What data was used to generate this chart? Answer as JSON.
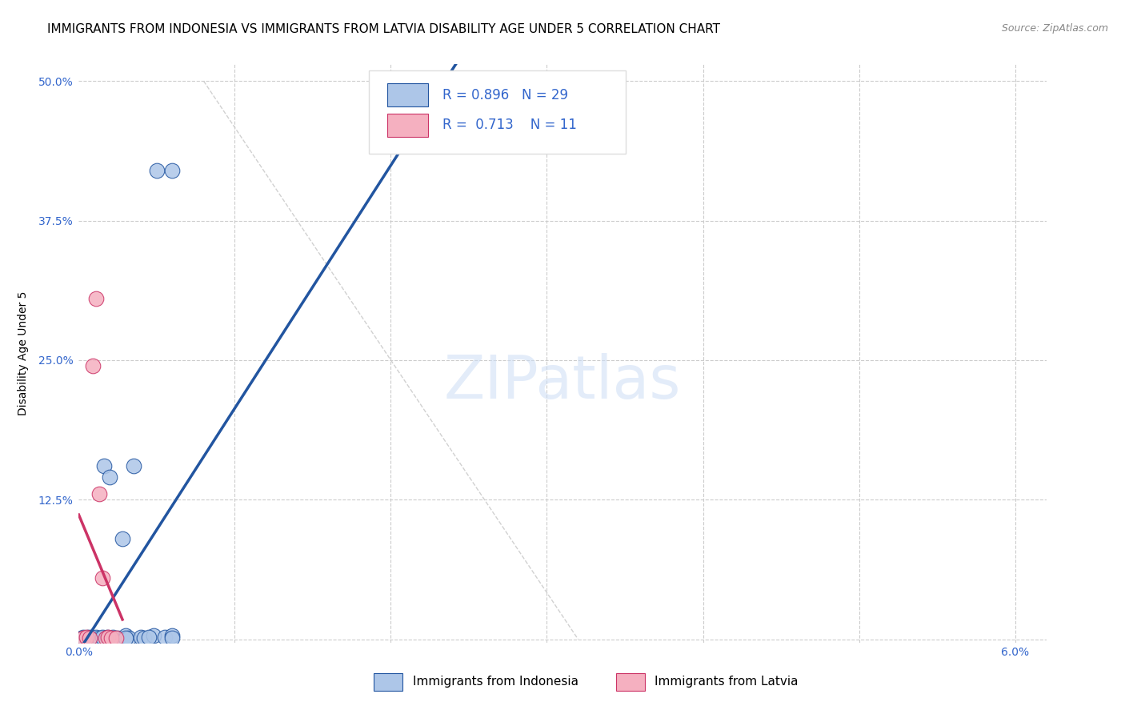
{
  "title": "IMMIGRANTS FROM INDONESIA VS IMMIGRANTS FROM LATVIA DISABILITY AGE UNDER 5 CORRELATION CHART",
  "source": "Source: ZipAtlas.com",
  "ylabel": "Disability Age Under 5",
  "xlim": [
    0.0,
    0.062
  ],
  "ylim": [
    -0.003,
    0.515
  ],
  "xtick_positions": [
    0.0,
    0.01,
    0.02,
    0.03,
    0.04,
    0.05,
    0.06
  ],
  "xticklabels": [
    "0.0%",
    "",
    "",
    "",
    "",
    "",
    "6.0%"
  ],
  "ytick_positions": [
    0.0,
    0.125,
    0.25,
    0.375,
    0.5
  ],
  "yticklabels": [
    "",
    "12.5%",
    "25.0%",
    "37.5%",
    "50.0%"
  ],
  "indonesia_R": 0.896,
  "indonesia_N": 29,
  "latvia_R": 0.713,
  "latvia_N": 11,
  "indonesia_color": "#adc6e8",
  "indonesia_line_color": "#2255a0",
  "latvia_color": "#f5b0c0",
  "latvia_line_color": "#cc3366",
  "indonesia_x": [
    0.0002,
    0.0003,
    0.0005,
    0.0006,
    0.0007,
    0.0008,
    0.001,
    0.0011,
    0.0013,
    0.0015,
    0.0016,
    0.0018,
    0.002,
    0.0022,
    0.0025,
    0.003,
    0.0032,
    0.0035,
    0.004,
    0.0042,
    0.005,
    0.0048,
    0.0055,
    0.006,
    0.006,
    0.006,
    0.0045,
    0.003,
    0.0028
  ],
  "indonesia_y": [
    0.001,
    0.002,
    0.001,
    0.002,
    0.001,
    0.002,
    0.001,
    0.002,
    0.001,
    0.002,
    0.155,
    0.002,
    0.145,
    0.002,
    0.001,
    0.003,
    0.001,
    0.155,
    0.002,
    0.001,
    0.42,
    0.003,
    0.002,
    0.42,
    0.003,
    0.001,
    0.002,
    0.001,
    0.09
  ],
  "latvia_x": [
    0.0003,
    0.0005,
    0.0007,
    0.0009,
    0.0011,
    0.0013,
    0.0015,
    0.0017,
    0.0019,
    0.0021,
    0.0024
  ],
  "latvia_y": [
    0.001,
    0.002,
    0.001,
    0.245,
    0.305,
    0.13,
    0.055,
    0.001,
    0.002,
    0.001,
    0.001
  ],
  "watermark_text": "ZIPatlas",
  "title_fontsize": 11,
  "axis_label_fontsize": 10,
  "tick_fontsize": 10,
  "legend_fontsize": 12
}
